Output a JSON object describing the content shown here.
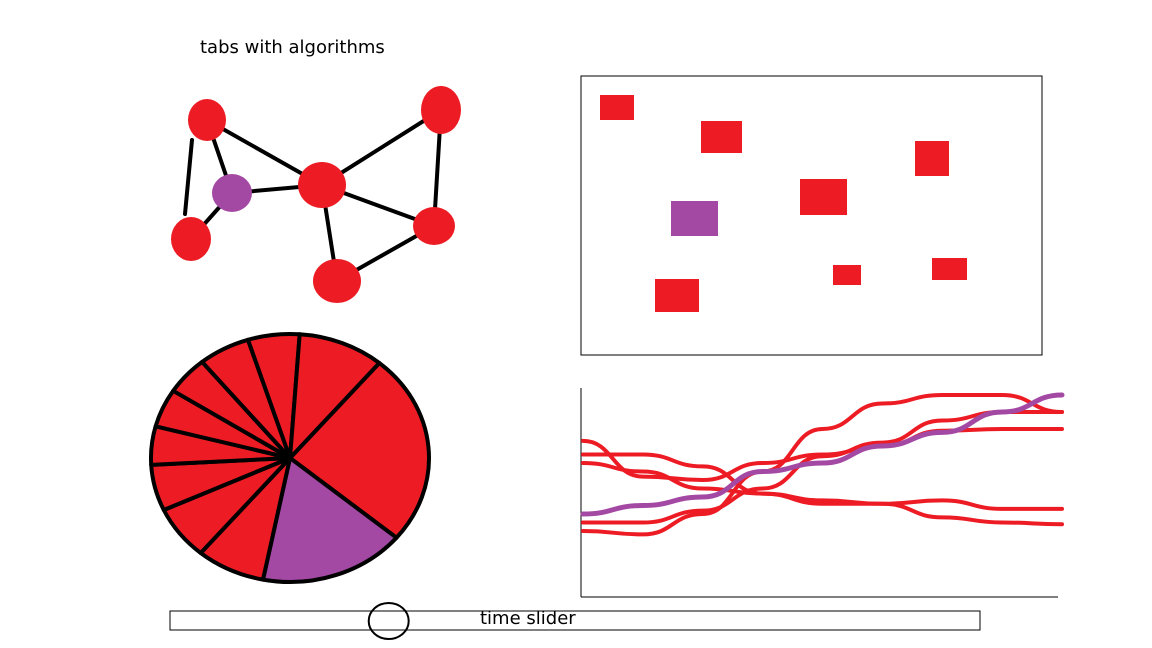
{
  "header": {
    "tabs_label": "tabs with algorithms"
  },
  "slider": {
    "label": "time slider",
    "position": 0.27
  },
  "colors": {
    "node": "#ed1c24",
    "highlight": "#a349a4",
    "stroke": "#000000"
  },
  "chart_data": [
    {
      "type": "pie",
      "values": [
        25,
        17,
        8,
        7,
        6,
        5,
        5,
        5,
        6,
        6,
        10
      ],
      "highlight_index": 1
    },
    {
      "type": "line",
      "series": [
        {
          "values": [
            0.2,
            0.18,
            0.3,
            0.55,
            0.8,
            0.95,
            1.0,
            1.0,
            0.9
          ]
        },
        {
          "values": [
            0.6,
            0.55,
            0.45,
            0.42,
            0.38,
            0.36,
            0.28,
            0.25,
            0.24
          ]
        },
        {
          "values": [
            0.65,
            0.65,
            0.58,
            0.42,
            0.36,
            0.36,
            0.38,
            0.33,
            0.33
          ]
        },
        {
          "values": [
            0.73,
            0.52,
            0.5,
            0.6,
            0.65,
            0.7,
            0.79,
            0.8,
            0.8
          ]
        },
        {
          "values": [
            0.25,
            0.25,
            0.32,
            0.45,
            0.64,
            0.72,
            0.85,
            0.9,
            0.9
          ]
        },
        {
          "values": [
            0.3,
            0.35,
            0.4,
            0.55,
            0.6,
            0.7,
            0.78,
            0.9,
            1.0
          ],
          "highlight": true
        }
      ]
    }
  ]
}
